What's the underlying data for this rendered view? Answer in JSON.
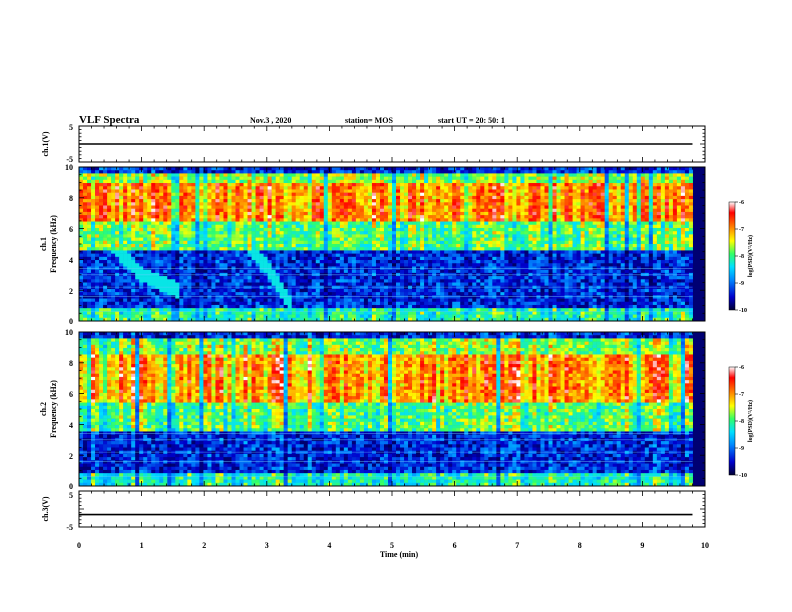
{
  "header": {
    "title": "VLF Spectra",
    "date": "Nov.3 , 2020",
    "station": "station= MOS",
    "start_ut": "start UT = 20: 50: 1"
  },
  "panels": {
    "ch1v": {
      "label": "ch.1(V)",
      "ticks": [
        "5",
        "-5"
      ]
    },
    "ch1": {
      "label_top": "ch.1",
      "label_bottom": "Frequency (kHz)",
      "ticks": [
        "10",
        "8",
        "6",
        "4",
        "2",
        "0"
      ]
    },
    "ch2": {
      "label_top": "ch.2",
      "label_bottom": "Frequency (kHz)",
      "ticks": [
        "10",
        "8",
        "6",
        "4",
        "2",
        "0"
      ]
    },
    "ch3v": {
      "label": "ch.3(V)",
      "ticks": [
        "5",
        "-5"
      ]
    }
  },
  "xaxis": {
    "label": "Time (min)",
    "ticks": [
      "0",
      "1",
      "2",
      "3",
      "4",
      "5",
      "6",
      "7",
      "8",
      "9",
      "10"
    ]
  },
  "colorbar": {
    "label": "log(PSD)(V²/Hz)",
    "ticks": [
      "-6",
      "-7",
      "-8",
      "-9",
      "-10"
    ],
    "colors": [
      "#000033",
      "#0000cc",
      "#0088ff",
      "#00e0ff",
      "#33ff66",
      "#ffff00",
      "#ff8800",
      "#ff0000",
      "#ffffff"
    ]
  },
  "chart_data": [
    {
      "type": "line",
      "panel": "ch.1(V)",
      "ylabel": "ch.1(V)",
      "ylim": [
        -5,
        5
      ],
      "xlim": [
        0,
        10
      ],
      "description_values": {
        "x": [
          0,
          9.8
        ],
        "y": [
          0,
          0
        ]
      }
    },
    {
      "type": "heatmap",
      "panel": "ch.1",
      "ylabel": "Frequency (kHz)",
      "xlabel": "Time (min)",
      "xlim": [
        0,
        10
      ],
      "ylim": [
        0,
        10
      ],
      "zlim": [
        -10,
        -6
      ],
      "zlabel": "log(PSD)(V²/Hz)",
      "intense_band_khz": [
        6.5,
        9.0
      ],
      "features": [
        {
          "kind": "dispersed-tone",
          "x": [
            0.5,
            1.0,
            1.6
          ],
          "y": [
            5.0,
            3.0,
            2.0
          ]
        },
        {
          "kind": "dispersed-tone",
          "x": [
            2.6,
            3.0,
            3.4
          ],
          "y": [
            5.5,
            3.5,
            1.0
          ]
        }
      ]
    },
    {
      "type": "heatmap",
      "panel": "ch.2",
      "ylabel": "Frequency (kHz)",
      "xlabel": "Time (min)",
      "xlim": [
        0,
        10
      ],
      "ylim": [
        0,
        10
      ],
      "zlim": [
        -10,
        -6
      ],
      "zlabel": "log(PSD)(V²/Hz)",
      "intense_band_khz": [
        5.5,
        8.5
      ]
    },
    {
      "type": "line",
      "panel": "ch.3(V)",
      "ylabel": "ch.3(V)",
      "xlabel": "Time (min)",
      "ylim": [
        -5,
        5
      ],
      "xlim": [
        0,
        10
      ],
      "description_values": {
        "x": [
          0,
          9.8
        ],
        "y": [
          -2,
          -2
        ]
      }
    }
  ]
}
